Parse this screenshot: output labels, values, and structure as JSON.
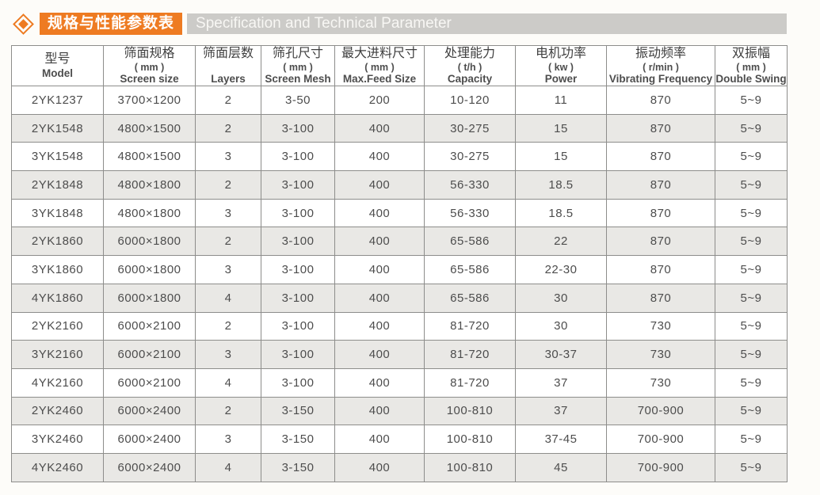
{
  "header": {
    "title_cn": "规格与性能参数表",
    "subtitle_en": "Specification and Technical Parameter",
    "accent_color": "#ee7b22",
    "band_color": "#cccbc8"
  },
  "table": {
    "columns": [
      {
        "cn": "型号",
        "unit": "",
        "en": "Model"
      },
      {
        "cn": "筛面规格",
        "unit": "( mm )",
        "en": "Screen size"
      },
      {
        "cn": "筛面层数",
        "unit": "",
        "en": "Layers"
      },
      {
        "cn": "筛孔尺寸",
        "unit": "( mm )",
        "en": "Screen Mesh"
      },
      {
        "cn": "最大进料尺寸",
        "unit": "( mm )",
        "en": "Max.Feed Size"
      },
      {
        "cn": "处理能力",
        "unit": "( t/h )",
        "en": "Capacity"
      },
      {
        "cn": "电机功率",
        "unit": "( kw )",
        "en": "Power"
      },
      {
        "cn": "振动频率",
        "unit": "( r/min )",
        "en": "Vibrating Frequency"
      },
      {
        "cn": "双振幅",
        "unit": "( mm )",
        "en": "Double Swing"
      }
    ],
    "rows": [
      [
        "2YK1237",
        "3700×1200",
        "2",
        "3-50",
        "200",
        "10-120",
        "11",
        "870",
        "5~9"
      ],
      [
        "2YK1548",
        "4800×1500",
        "2",
        "3-100",
        "400",
        "30-275",
        "15",
        "870",
        "5~9"
      ],
      [
        "3YK1548",
        "4800×1500",
        "3",
        "3-100",
        "400",
        "30-275",
        "15",
        "870",
        "5~9"
      ],
      [
        "2YK1848",
        "4800×1800",
        "2",
        "3-100",
        "400",
        "56-330",
        "18.5",
        "870",
        "5~9"
      ],
      [
        "3YK1848",
        "4800×1800",
        "3",
        "3-100",
        "400",
        "56-330",
        "18.5",
        "870",
        "5~9"
      ],
      [
        "2YK1860",
        "6000×1800",
        "2",
        "3-100",
        "400",
        "65-586",
        "22",
        "870",
        "5~9"
      ],
      [
        "3YK1860",
        "6000×1800",
        "3",
        "3-100",
        "400",
        "65-586",
        "22-30",
        "870",
        "5~9"
      ],
      [
        "4YK1860",
        "6000×1800",
        "4",
        "3-100",
        "400",
        "65-586",
        "30",
        "870",
        "5~9"
      ],
      [
        "2YK2160",
        "6000×2100",
        "2",
        "3-100",
        "400",
        "81-720",
        "30",
        "730",
        "5~9"
      ],
      [
        "3YK2160",
        "6000×2100",
        "3",
        "3-100",
        "400",
        "81-720",
        "30-37",
        "730",
        "5~9"
      ],
      [
        "4YK2160",
        "6000×2100",
        "4",
        "3-100",
        "400",
        "81-720",
        "37",
        "730",
        "5~9"
      ],
      [
        "2YK2460",
        "6000×2400",
        "2",
        "3-150",
        "400",
        "100-810",
        "37",
        "700-900",
        "5~9"
      ],
      [
        "3YK2460",
        "6000×2400",
        "3",
        "3-150",
        "400",
        "100-810",
        "37-45",
        "700-900",
        "5~9"
      ],
      [
        "4YK2460",
        "6000×2400",
        "4",
        "3-150",
        "400",
        "100-810",
        "45",
        "700-900",
        "5~9"
      ]
    ],
    "stripe_color": "#e9e8e5"
  }
}
